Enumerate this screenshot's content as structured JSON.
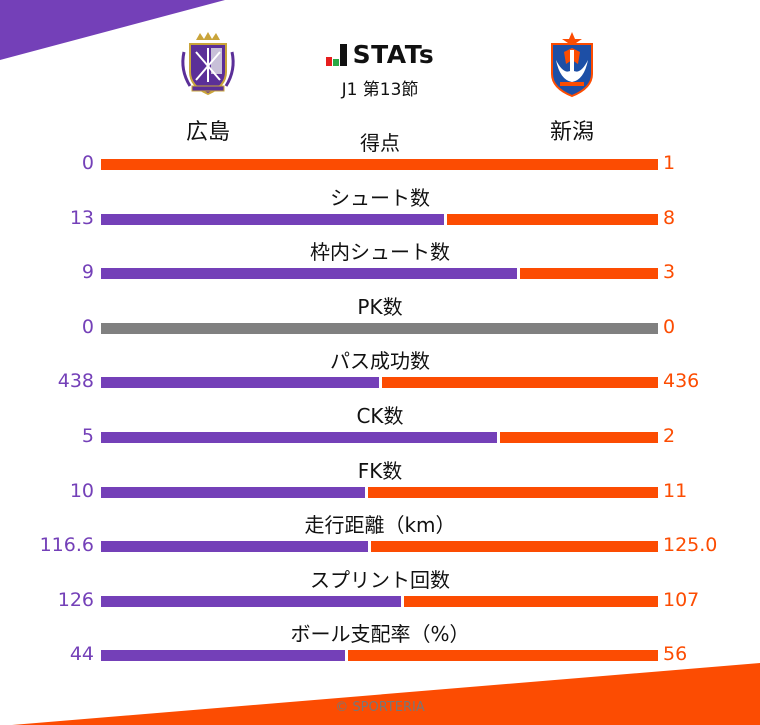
{
  "header": {
    "brand_title": "STATs",
    "round": "J1 第13節",
    "home_team": "広島",
    "away_team": "新潟",
    "home_crest_icon": "sanfrecce-hiroshima-crest-icon",
    "away_crest_icon": "albirex-niigata-crest-icon"
  },
  "colors": {
    "home": "#7440b8",
    "away": "#fc4c02",
    "neutral": "#808080"
  },
  "footer": {
    "copyright": "© SPORTERIA"
  },
  "chart_data": {
    "type": "bar",
    "title": "STATs J1 第13節 広島 vs 新潟",
    "orientation": "horizontal-stacked-share",
    "categories": [
      "得点",
      "シュート数",
      "枠内シュート数",
      "PK数",
      "パス成功数",
      "CK数",
      "FK数",
      "走行距離（km）",
      "スプリント回数",
      "ボール支配率（%）"
    ],
    "series": [
      {
        "name": "広島",
        "values": [
          0,
          13,
          9,
          0,
          438,
          5,
          10,
          116.6,
          126,
          44
        ]
      },
      {
        "name": "新潟",
        "values": [
          1,
          8,
          3,
          0,
          436,
          2,
          11,
          125.0,
          107,
          56
        ]
      }
    ],
    "display_values": {
      "home": [
        "0",
        "13",
        "9",
        "0",
        "438",
        "5",
        "10",
        "116.6",
        "126",
        "44"
      ],
      "away": [
        "1",
        "8",
        "3",
        "0",
        "436",
        "2",
        "11",
        "125.0",
        "107",
        "56"
      ]
    },
    "legend": [
      "広島",
      "新潟"
    ]
  }
}
